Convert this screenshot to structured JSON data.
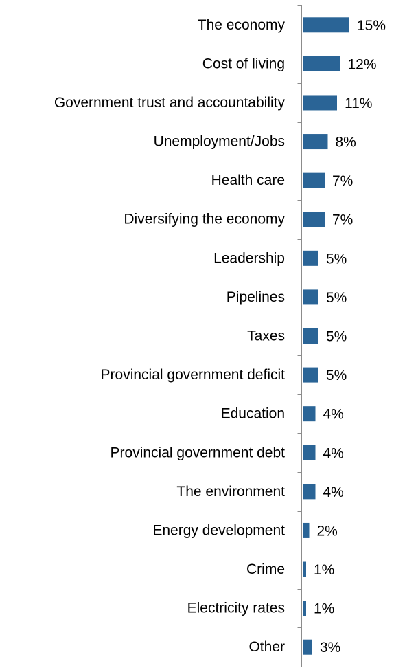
{
  "chart_data": {
    "type": "bar",
    "orientation": "horizontal",
    "title": "",
    "xlabel": "",
    "ylabel": "",
    "categories": [
      "The economy",
      "Cost of living",
      "Government trust and accountability",
      "Unemployment/Jobs",
      "Health care",
      "Diversifying the economy",
      "Leadership",
      "Pipelines",
      "Taxes",
      "Provincial government deficit",
      "Education",
      "Provincial government debt",
      "The environment",
      "Energy development",
      "Crime",
      "Electricity rates",
      "Other"
    ],
    "values": [
      15,
      12,
      11,
      8,
      7,
      7,
      5,
      5,
      5,
      5,
      4,
      4,
      4,
      2,
      1,
      1,
      3
    ],
    "value_labels": [
      "15%",
      "12%",
      "11%",
      "8%",
      "7%",
      "7%",
      "5%",
      "5%",
      "5%",
      "5%",
      "4%",
      "4%",
      "4%",
      "2%",
      "1%",
      "1%",
      "3%"
    ],
    "xlim": [
      0,
      100
    ],
    "unit": "%",
    "grid": false,
    "legend": "none",
    "bar_color": "#2a6496",
    "axis_color": "#8c8c8c"
  }
}
